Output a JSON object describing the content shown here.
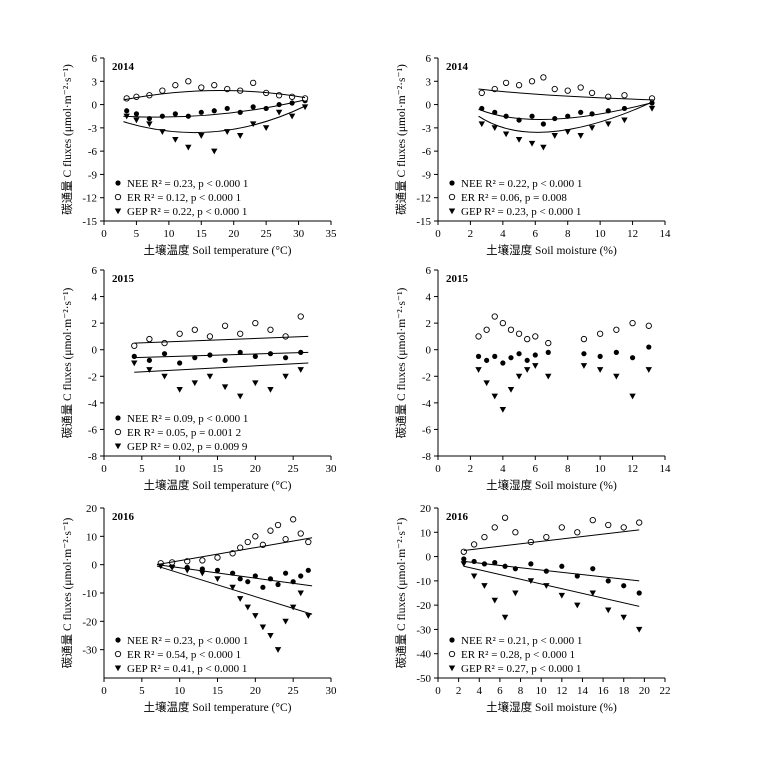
{
  "chart_data": [
    {
      "id": "p2014t",
      "type": "scatter",
      "year_label": "2014",
      "xlabel": "土壤温度 Soil temperature (°C)",
      "ylabel": "碳通量 C fluxes (μmol·m⁻²·s⁻¹)",
      "xlim": [
        0,
        35
      ],
      "ylim": [
        -15,
        6
      ],
      "xticks": [
        "0",
        "5",
        "10",
        "15",
        "20",
        "25",
        "30",
        "35"
      ],
      "yticks": [
        "6",
        "3",
        "0",
        "-3",
        "-6",
        "-9",
        "-12",
        "-15"
      ],
      "legend_position": "bottom-left",
      "series": [
        {
          "name": "NEE",
          "marker": "filled-circle",
          "legend": "NEE R² = 0.23, p < 0.000 1",
          "x": [
            3.5,
            5,
            7,
            9,
            11,
            13,
            15,
            17,
            19,
            21,
            23,
            25,
            27,
            29,
            31
          ],
          "y": [
            -0.8,
            -1.2,
            -1.8,
            -1.5,
            -1.2,
            -1.5,
            -1.0,
            -0.8,
            -0.5,
            -1.0,
            -0.3,
            -0.5,
            0,
            0.2,
            0.5
          ],
          "fit": [
            [
              3,
              -1.5
            ],
            [
              17,
              -1.3
            ],
            [
              31,
              0.6
            ]
          ]
        },
        {
          "name": "ER",
          "marker": "open-circle",
          "legend": "ER R² = 0.12, p < 0.000 1",
          "x": [
            3.5,
            5,
            7,
            9,
            11,
            13,
            15,
            17,
            19,
            21,
            23,
            25,
            27,
            29,
            31
          ],
          "y": [
            0.8,
            1.0,
            1.2,
            1.8,
            2.5,
            3.0,
            2.2,
            2.5,
            2.0,
            1.8,
            2.8,
            1.5,
            1.2,
            1.0,
            0.8
          ],
          "fit": [
            [
              3,
              0.6
            ],
            [
              17,
              1.8
            ],
            [
              31,
              0.9
            ]
          ]
        },
        {
          "name": "GEP",
          "marker": "filled-triangle-down",
          "legend": "GEP R² = 0.22, p < 0.000 1",
          "x": [
            3.5,
            5,
            7,
            9,
            11,
            13,
            15,
            17,
            19,
            21,
            23,
            25,
            27,
            29,
            31
          ],
          "y": [
            -1.5,
            -2.0,
            -2.5,
            -3.5,
            -4.5,
            -5.5,
            -4.0,
            -6.0,
            -3.5,
            -4.0,
            -2.5,
            -3.0,
            -1.0,
            -1.5,
            -0.3
          ],
          "fit": [
            [
              3,
              -2.2
            ],
            [
              17,
              -3.5
            ],
            [
              31,
              -0.2
            ]
          ]
        }
      ]
    },
    {
      "id": "p2014m",
      "type": "scatter",
      "year_label": "2014",
      "xlabel": "土壤湿度 Soil moisture (%)",
      "ylabel": "碳通量 C fluxes (μmol·m⁻²·s⁻¹)",
      "xlim": [
        0,
        14
      ],
      "ylim": [
        -15,
        6
      ],
      "xticks": [
        "0",
        "2",
        "4",
        "6",
        "8",
        "10",
        "12",
        "14"
      ],
      "yticks": [
        "6",
        "3",
        "0",
        "-3",
        "-6",
        "-9",
        "-12",
        "-15"
      ],
      "legend_position": "bottom-left",
      "series": [
        {
          "name": "NEE",
          "marker": "filled-circle",
          "legend": "NEE R² = 0.22, p < 0.000 1",
          "x": [
            2.7,
            3.5,
            4.2,
            5,
            5.8,
            6.5,
            7.2,
            8,
            8.8,
            9.5,
            10.5,
            11.5,
            13.2
          ],
          "y": [
            -0.5,
            -1.0,
            -1.5,
            -2.0,
            -1.5,
            -2.5,
            -1.8,
            -1.5,
            -1.0,
            -1.2,
            -0.8,
            -0.5,
            0.2
          ],
          "fit": [
            [
              2.5,
              -0.6
            ],
            [
              7,
              -1.9
            ],
            [
              13.3,
              0.3
            ]
          ]
        },
        {
          "name": "ER",
          "marker": "open-circle",
          "legend": "ER R² = 0.06, p = 0.008",
          "x": [
            2.7,
            3.5,
            4.2,
            5,
            5.8,
            6.5,
            7.2,
            8,
            8.8,
            9.5,
            10.5,
            11.5,
            13.2
          ],
          "y": [
            1.5,
            2.0,
            2.8,
            2.5,
            3.0,
            3.5,
            2.0,
            1.8,
            2.2,
            1.5,
            1.0,
            1.2,
            0.8
          ],
          "fit": [
            [
              2.5,
              2.0
            ],
            [
              7,
              1.2
            ],
            [
              13.3,
              0.6
            ]
          ]
        },
        {
          "name": "GEP",
          "marker": "filled-triangle-down",
          "legend": "GEP R² = 0.23, p < 0.000 1",
          "x": [
            2.7,
            3.5,
            4.2,
            5,
            5.8,
            6.5,
            7.2,
            8,
            8.8,
            9.5,
            10.5,
            11.5,
            13.2
          ],
          "y": [
            -2.5,
            -3.0,
            -3.8,
            -4.5,
            -5.0,
            -5.5,
            -4.0,
            -3.5,
            -4.0,
            -3.0,
            -2.5,
            -2.0,
            -0.5
          ],
          "fit": [
            [
              2.5,
              -1.5
            ],
            [
              7,
              -3.5
            ],
            [
              13.3,
              0.4
            ]
          ]
        }
      ]
    },
    {
      "id": "p2015t",
      "type": "scatter",
      "year_label": "2015",
      "xlabel": "土壤温度 Soil temperature (°C)",
      "ylabel": "碳通量 C fluxes (μmol·m⁻²·s⁻¹)",
      "xlim": [
        0,
        30
      ],
      "ylim": [
        -8,
        6
      ],
      "xticks": [
        "0",
        "5",
        "10",
        "15",
        "20",
        "25",
        "30"
      ],
      "yticks": [
        "6",
        "4",
        "2",
        "0",
        "-2",
        "-4",
        "-6",
        "-8"
      ],
      "legend_position": "bottom-left",
      "series": [
        {
          "name": "NEE",
          "marker": "filled-circle",
          "legend": "NEE R² = 0.09, p < 0.000 1",
          "x": [
            4,
            6,
            8,
            10,
            12,
            14,
            16,
            18,
            20,
            22,
            24,
            26
          ],
          "y": [
            -0.5,
            -0.8,
            -0.3,
            -1.0,
            -0.6,
            -0.4,
            -0.8,
            -0.2,
            -0.5,
            -0.3,
            -0.6,
            -0.2
          ],
          "fit": [
            [
              4,
              -0.6
            ],
            [
              27,
              -0.2
            ]
          ]
        },
        {
          "name": "ER",
          "marker": "open-circle",
          "legend": "ER R² = 0.05, p = 0.001 2",
          "x": [
            4,
            6,
            8,
            10,
            12,
            14,
            16,
            18,
            20,
            22,
            24,
            26
          ],
          "y": [
            0.3,
            0.8,
            0.5,
            1.2,
            1.5,
            1.0,
            1.8,
            1.2,
            2.0,
            1.5,
            1.0,
            2.5
          ],
          "fit": [
            [
              4,
              0.5
            ],
            [
              27,
              1.0
            ]
          ]
        },
        {
          "name": "GEP",
          "marker": "filled-triangle-down",
          "legend": "GEP R² = 0.02, p = 0.009 9",
          "x": [
            4,
            6,
            8,
            10,
            12,
            14,
            16,
            18,
            20,
            22,
            24,
            26
          ],
          "y": [
            -1.0,
            -1.5,
            -2.0,
            -3.0,
            -2.5,
            -2.0,
            -2.8,
            -3.5,
            -2.5,
            -3.0,
            -2.0,
            -1.5
          ],
          "fit": [
            [
              4,
              -1.7
            ],
            [
              27,
              -1.0
            ]
          ]
        }
      ]
    },
    {
      "id": "p2015m",
      "type": "scatter",
      "year_label": "2015",
      "xlabel": "土壤湿度 Soil moisture (%)",
      "ylabel": "碳通量 C fluxes (μmol·m⁻²·s⁻¹)",
      "xlim": [
        0,
        14
      ],
      "ylim": [
        -8,
        6
      ],
      "xticks": [
        "0",
        "2",
        "4",
        "6",
        "8",
        "10",
        "12",
        "14"
      ],
      "yticks": [
        "6",
        "4",
        "2",
        "0",
        "-2",
        "-4",
        "-6",
        "-8"
      ],
      "legend_position": "none",
      "series": [
        {
          "name": "NEE",
          "marker": "filled-circle",
          "legend": "",
          "x": [
            2.5,
            3,
            3.5,
            4,
            4.5,
            5,
            5.5,
            6,
            6.8,
            9,
            10,
            11,
            12,
            13
          ],
          "y": [
            -0.5,
            -0.8,
            -0.5,
            -1.0,
            -0.6,
            -0.3,
            -0.8,
            -0.4,
            -0.2,
            -0.3,
            -0.5,
            -0.2,
            -0.6,
            0.2
          ],
          "fit": []
        },
        {
          "name": "ER",
          "marker": "open-circle",
          "legend": "",
          "x": [
            2.5,
            3,
            3.5,
            4,
            4.5,
            5,
            5.5,
            6,
            6.8,
            9,
            10,
            11,
            12,
            13
          ],
          "y": [
            1.0,
            1.5,
            2.5,
            2.0,
            1.5,
            1.2,
            0.8,
            1.0,
            0.5,
            0.8,
            1.2,
            1.5,
            2.0,
            1.8
          ],
          "fit": []
        },
        {
          "name": "GEP",
          "marker": "filled-triangle-down",
          "legend": "",
          "x": [
            2.5,
            3,
            3.5,
            4,
            4.5,
            5,
            5.5,
            6,
            6.8,
            9,
            10,
            11,
            12,
            13
          ],
          "y": [
            -1.5,
            -2.5,
            -3.5,
            -4.5,
            -3.0,
            -2.0,
            -1.5,
            -1.2,
            -2.0,
            -1.2,
            -1.5,
            -2.0,
            -3.5,
            -1.5
          ],
          "fit": []
        }
      ]
    },
    {
      "id": "p2016t",
      "type": "scatter",
      "year_label": "2016",
      "xlabel": "土壤温度 Soil temperature (°C)",
      "ylabel": "碳通量 C fluxes (μmol·m⁻²·s⁻¹)",
      "xlim": [
        0,
        30
      ],
      "ylim": [
        -40,
        20
      ],
      "xticks": [
        "0",
        "5",
        "10",
        "15",
        "20",
        "25",
        "30"
      ],
      "yticks": [
        "20",
        "10",
        "0",
        "-10",
        "-20",
        "-30"
      ],
      "legend_position": "bottom-left",
      "series": [
        {
          "name": "NEE",
          "marker": "filled-circle",
          "legend": "NEE R² = 0.23, p < 0.000 1",
          "x": [
            7.5,
            9,
            11,
            13,
            15,
            17,
            18,
            19,
            20,
            21,
            22,
            23,
            24,
            25,
            26,
            27
          ],
          "y": [
            0.5,
            -0.5,
            -1.0,
            -1.5,
            -2.0,
            -3.0,
            -5.0,
            -6.0,
            -4.0,
            -8.0,
            -5.0,
            -7.0,
            -3.0,
            -6.0,
            -4.0,
            -2.0
          ],
          "fit": [
            [
              7,
              0
            ],
            [
              27.5,
              -7.5
            ]
          ]
        },
        {
          "name": "ER",
          "marker": "open-circle",
          "legend": "ER R² = 0.54, p < 0.000 1",
          "x": [
            7.5,
            9,
            11,
            13,
            15,
            17,
            18,
            19,
            20,
            21,
            22,
            23,
            24,
            25,
            26,
            27
          ],
          "y": [
            0.5,
            0.8,
            1.2,
            1.5,
            2.5,
            4.0,
            6.0,
            8.0,
            10.0,
            7.0,
            12.0,
            14.0,
            9.0,
            16.0,
            11.0,
            8.0
          ],
          "fit": [
            [
              7,
              0
            ],
            [
              27.5,
              9.5
            ]
          ]
        },
        {
          "name": "GEP",
          "marker": "filled-triangle-down",
          "legend": "GEP R² = 0.41, p < 0.000 1",
          "x": [
            7.5,
            9,
            11,
            13,
            15,
            17,
            18,
            19,
            20,
            21,
            22,
            23,
            24,
            25,
            26,
            27
          ],
          "y": [
            -0.5,
            -1.0,
            -2.0,
            -3.0,
            -5.0,
            -8.0,
            -12.0,
            -15.0,
            -18.0,
            -22.0,
            -25.0,
            -30.0,
            -20.0,
            -15.0,
            -10.0,
            -18.0
          ],
          "fit": [
            [
              7,
              -0.5
            ],
            [
              27.5,
              -17.5
            ]
          ]
        }
      ]
    },
    {
      "id": "p2016m",
      "type": "scatter",
      "year_label": "2016",
      "xlabel": "土壤湿度 Soil moisture (%)",
      "ylabel": "碳通量 C fluxes (μmol·m⁻²·s⁻¹)",
      "xlim": [
        0,
        22
      ],
      "ylim": [
        -50,
        20
      ],
      "xticks": [
        "0",
        "2",
        "4",
        "6",
        "8",
        "10",
        "12",
        "14",
        "16",
        "18",
        "20",
        "22"
      ],
      "yticks": [
        "20",
        "10",
        "0",
        "-10",
        "-20",
        "-30",
        "-40",
        "-50"
      ],
      "legend_position": "bottom-left",
      "series": [
        {
          "name": "NEE",
          "marker": "filled-circle",
          "legend": "NEE R² = 0.21, p < 0.000 1",
          "x": [
            2.5,
            3.5,
            4.5,
            5.5,
            6.5,
            7.5,
            9,
            10.5,
            12,
            13.5,
            15,
            16.5,
            18,
            19.5
          ],
          "y": [
            -1.0,
            -2.0,
            -3.0,
            -2.5,
            -4.0,
            -5.0,
            -3.0,
            -6.0,
            -4.0,
            -8.0,
            -5.0,
            -10.0,
            -12.0,
            -15.0
          ],
          "fit": [
            [
              2.5,
              -2.0
            ],
            [
              19.5,
              -10.0
            ]
          ]
        },
        {
          "name": "ER",
          "marker": "open-circle",
          "legend": "ER R² = 0.28, p < 0.000 1",
          "x": [
            2.5,
            3.5,
            4.5,
            5.5,
            6.5,
            7.5,
            9,
            10.5,
            12,
            13.5,
            15,
            16.5,
            18,
            19.5
          ],
          "y": [
            2.0,
            5.0,
            8.0,
            12.0,
            16.0,
            10.0,
            6.0,
            8.0,
            12.0,
            10.0,
            15.0,
            13.0,
            12.0,
            14.0
          ],
          "fit": [
            [
              2.5,
              2.5
            ],
            [
              19.5,
              11.0
            ]
          ]
        },
        {
          "name": "GEP",
          "marker": "filled-triangle-down",
          "legend": "GEP R² = 0.27, p < 0.000 1",
          "x": [
            2.5,
            3.5,
            4.5,
            5.5,
            6.5,
            7.5,
            9,
            10.5,
            12,
            13.5,
            15,
            16.5,
            18,
            19.5
          ],
          "y": [
            -3.0,
            -8.0,
            -12.0,
            -18.0,
            -25.0,
            -15.0,
            -10.0,
            -12.0,
            -16.0,
            -20.0,
            -15.0,
            -22.0,
            -25.0,
            -30.0
          ],
          "fit": [
            [
              2.5,
              -4.0
            ],
            [
              19.5,
              -20.5
            ]
          ]
        }
      ]
    }
  ]
}
